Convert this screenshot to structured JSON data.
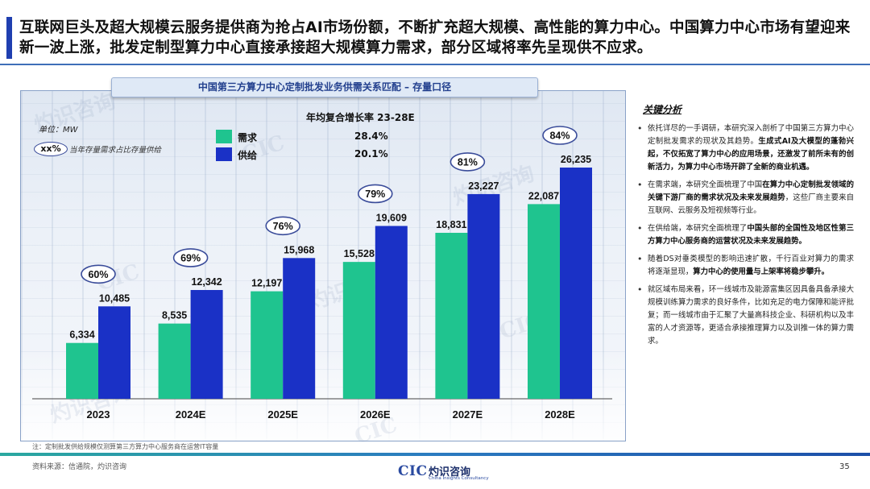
{
  "headline": "互联网巨头及超大规模云服务提供商为抢占AI市场份额，不断扩充超大规模、高性能的算力中心。中国算力中心市场有望迎来新一波上涨，批发定制型算力中心直接承接超大规模算力需求，部分区域将率先呈现供不应求。",
  "chart_panel": {
    "title": "中国第三方算力中心定制批发业务供需关系匹配 – 存量口径",
    "unit": "单位：MW",
    "key_badge": "xx%",
    "key_text": "当年存量需求占比存量供给",
    "cagr_title": "年均复合增长率 23-28E",
    "legend": [
      {
        "label": "需求",
        "cagr": "28.4%",
        "color": "#1fc48f"
      },
      {
        "label": "供给",
        "cagr": "20.1%",
        "color": "#1a31c6"
      }
    ]
  },
  "chart_data": {
    "type": "bar",
    "title": "中国第三方算力中心定制批发业务供需关系匹配 – 存量口径",
    "ylabel": "单位：MW",
    "categories": [
      "2023",
      "2024E",
      "2025E",
      "2026E",
      "2027E",
      "2028E"
    ],
    "series": [
      {
        "name": "需求",
        "values": [
          6334,
          8535,
          12197,
          15528,
          18831,
          22087
        ],
        "labels": [
          "6,334",
          "8,535",
          "12,197",
          "15,528",
          "18,831",
          "22,087"
        ],
        "color": "#1fc48f"
      },
      {
        "name": "供给",
        "values": [
          10485,
          12342,
          15968,
          19609,
          23227,
          26235
        ],
        "labels": [
          "10,485",
          "12,342",
          "15,968",
          "19,609",
          "23,227",
          "26,235"
        ],
        "color": "#1a31c6"
      }
    ],
    "ratios": [
      "60%",
      "69%",
      "76%",
      "79%",
      "81%",
      "84%"
    ],
    "ylim": [
      0,
      26235
    ],
    "grid": false,
    "legend_position": "top"
  },
  "analysis": {
    "title": "关键分析",
    "items": [
      {
        "parts": [
          {
            "text": "依托详尽的一手调研，本研究深入剖析了中国第三方算力中心定制批发需求的现状及其趋势。",
            "bold": false
          },
          {
            "text": "生成式AI及大模型的蓬勃兴起，不仅拓宽了算力中心的应用场景，还激发了前所未有的创新活力，为算力中心市场开辟了全新的商业机遇。",
            "bold": true
          }
        ]
      },
      {
        "parts": [
          {
            "text": "在需求端，本研究全面梳理了中国",
            "bold": false
          },
          {
            "text": "在算力中心定制批发领域的关键下游厂商的需求状况及未来发展趋势",
            "bold": true
          },
          {
            "text": "，这些厂商主要来自互联网、云服务及短视频等行业。",
            "bold": false
          }
        ]
      },
      {
        "parts": [
          {
            "text": "在供给端，本研究全面梳理了",
            "bold": false
          },
          {
            "text": "中国头部的全国性及地区性第三方算力中心服务商的运营状况及未来发展趋势。",
            "bold": true
          }
        ]
      },
      {
        "parts": [
          {
            "text": "随着DS对垂类模型的影响迅速扩散，千行百业对算力的需求将逐渐显现，",
            "bold": false
          },
          {
            "text": "算力中心的使用量与上架率将稳步攀升。",
            "bold": true
          }
        ]
      },
      {
        "parts": [
          {
            "text": "就区域布局来看，环一线城市及能源富集区因具备具备承接大规模训练算力需求的良好条件，比如充足的电力保障和能评批复；而一线城市由于汇聚了大量高科技企业、科研机构以及丰富的人才资源等，更适合承接推理算力以及训推一体的算力需求。",
            "bold": false
          }
        ]
      }
    ]
  },
  "footnote": "注：定制批发供给规模仅测算第三方算力中心服务商在运营IT容量",
  "source": "资料来源：信通院，灼识咨询",
  "page_number": "35",
  "logo": {
    "mark": "CIC",
    "name": "灼识咨询",
    "sub": "China Insights Consultancy"
  },
  "watermarks": [
    "灼识咨询",
    "CIC",
    "灼识咨询",
    "CIC",
    "灼识咨询",
    "CIC",
    "灼识咨询",
    "CIC"
  ]
}
